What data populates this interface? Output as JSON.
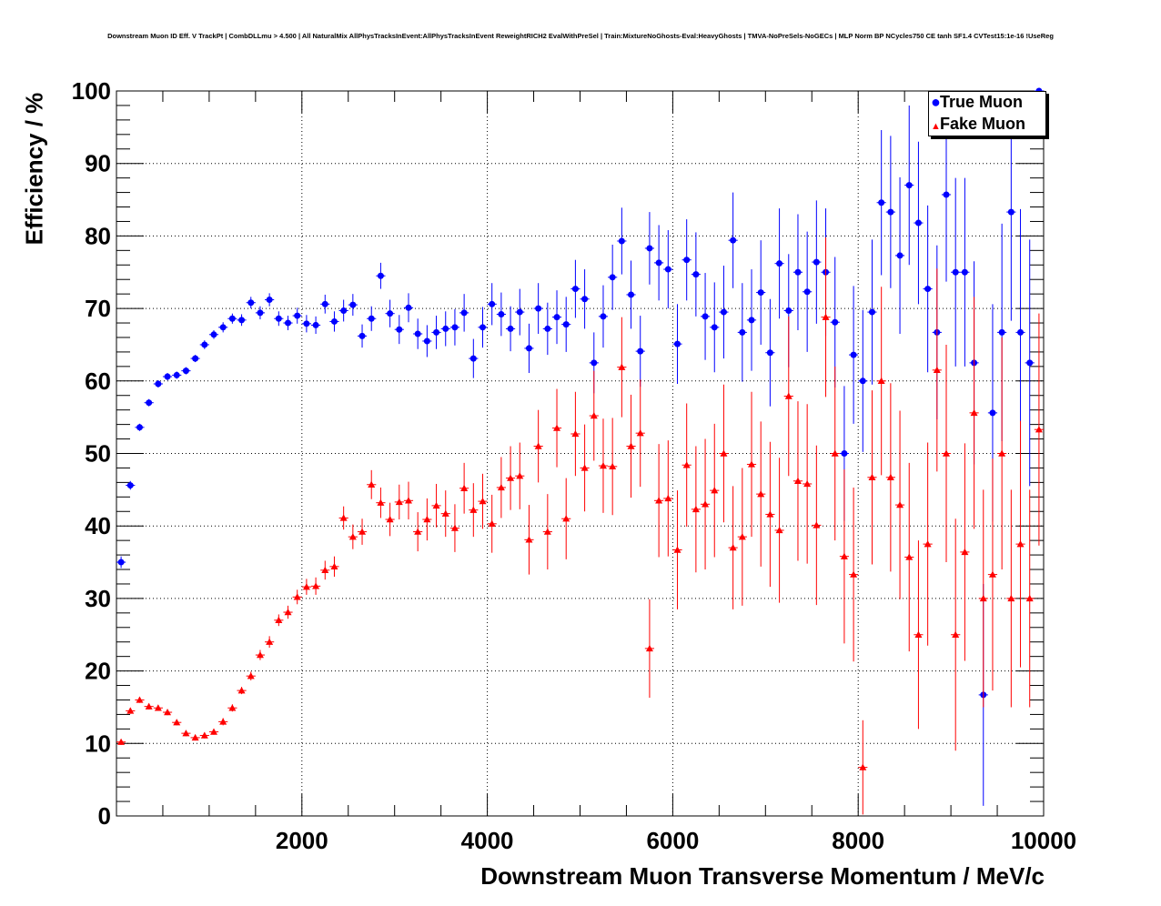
{
  "chart_data": {
    "type": "scatter",
    "title": "Downstream Muon ID Eff. V TrackPt | CombDLLmu > 4.500 | All NaturalMix AllPhysTracksInEvent:AllPhysTracksInEvent ReweightRICH2 EvalWithPreSel | Train:MixtureNoGhosts-Eval:HeavyGhosts | TMVA-NoPreSels-NoGECs | MLP Norm BP NCycles750 CE tanh SF1.4 CVTest15:1e-16 !UseReg",
    "xlabel": "Downstream Muon Transverse Momentum / MeV/c",
    "ylabel": "Efficiency / %",
    "xlim": [
      0,
      10000
    ],
    "ylim": [
      0,
      100
    ],
    "x_ticks": [
      2000,
      4000,
      6000,
      8000,
      10000
    ],
    "y_ticks": [
      0,
      10,
      20,
      30,
      40,
      50,
      60,
      70,
      80,
      90,
      100
    ],
    "grid": true,
    "legend_position": "top-right",
    "series": [
      {
        "name": "True Muon",
        "color": "#0000ff",
        "marker": "circle",
        "points": [
          [
            50,
            35.0,
            0.8
          ],
          [
            150,
            45.6,
            0.6
          ],
          [
            250,
            53.6,
            0.5
          ],
          [
            350,
            57.0,
            0.5
          ],
          [
            450,
            59.6,
            0.5
          ],
          [
            550,
            60.6,
            0.5
          ],
          [
            650,
            60.8,
            0.5
          ],
          [
            750,
            61.4,
            0.5
          ],
          [
            850,
            63.1,
            0.5
          ],
          [
            950,
            65.0,
            0.6
          ],
          [
            1050,
            66.4,
            0.6
          ],
          [
            1150,
            67.4,
            0.7
          ],
          [
            1250,
            68.6,
            0.7
          ],
          [
            1350,
            68.4,
            0.8
          ],
          [
            1450,
            70.8,
            0.8
          ],
          [
            1550,
            69.4,
            0.9
          ],
          [
            1650,
            71.2,
            0.9
          ],
          [
            1750,
            68.6,
            1.0
          ],
          [
            1850,
            68.0,
            1.0
          ],
          [
            1950,
            69.0,
            1.1
          ],
          [
            2050,
            67.9,
            1.2
          ],
          [
            2150,
            67.7,
            1.2
          ],
          [
            2250,
            70.6,
            1.3
          ],
          [
            2350,
            68.2,
            1.4
          ],
          [
            2450,
            69.7,
            1.5
          ],
          [
            2550,
            70.5,
            1.5
          ],
          [
            2650,
            66.2,
            1.6
          ],
          [
            2750,
            68.6,
            1.7
          ],
          [
            2850,
            74.5,
            1.8
          ],
          [
            2950,
            69.3,
            1.9
          ],
          [
            3050,
            67.1,
            2.0
          ],
          [
            3150,
            70.1,
            2.0
          ],
          [
            3250,
            66.5,
            2.1
          ],
          [
            3350,
            65.5,
            2.2
          ],
          [
            3450,
            66.7,
            2.3
          ],
          [
            3550,
            67.2,
            2.4
          ],
          [
            3650,
            67.4,
            2.5
          ],
          [
            3750,
            69.4,
            2.6
          ],
          [
            3850,
            63.1,
            2.7
          ],
          [
            3950,
            67.4,
            2.8
          ],
          [
            4050,
            70.6,
            2.9
          ],
          [
            4150,
            69.2,
            3.0
          ],
          [
            4250,
            67.2,
            3.1
          ],
          [
            4350,
            69.5,
            3.2
          ],
          [
            4450,
            64.5,
            3.4
          ],
          [
            4550,
            70.0,
            3.5
          ],
          [
            4650,
            67.2,
            3.6
          ],
          [
            4750,
            68.8,
            3.7
          ],
          [
            4850,
            67.8,
            3.8
          ],
          [
            4950,
            72.7,
            4.0
          ],
          [
            5050,
            71.3,
            4.1
          ],
          [
            5150,
            62.5,
            4.2
          ],
          [
            5250,
            68.9,
            4.3
          ],
          [
            5350,
            74.3,
            4.5
          ],
          [
            5450,
            79.3,
            4.6
          ],
          [
            5550,
            71.9,
            4.7
          ],
          [
            5650,
            64.1,
            4.9
          ],
          [
            5750,
            78.3,
            5.0
          ],
          [
            5850,
            76.3,
            5.2
          ],
          [
            5950,
            75.4,
            5.4
          ],
          [
            6050,
            65.1,
            5.5
          ],
          [
            6150,
            76.7,
            5.6
          ],
          [
            6250,
            74.7,
            5.8
          ],
          [
            6350,
            68.9,
            6.0
          ],
          [
            6450,
            67.4,
            6.2
          ],
          [
            6550,
            69.5,
            6.4
          ],
          [
            6650,
            79.4,
            6.6
          ],
          [
            6750,
            66.7,
            6.8
          ],
          [
            6850,
            68.4,
            7.0
          ],
          [
            6950,
            72.2,
            7.2
          ],
          [
            7050,
            63.9,
            7.4
          ],
          [
            7150,
            76.2,
            7.6
          ],
          [
            7250,
            69.7,
            7.8
          ],
          [
            7350,
            75.0,
            8.0
          ],
          [
            7450,
            72.3,
            8.3
          ],
          [
            7550,
            76.4,
            8.5
          ],
          [
            7650,
            75.0,
            8.8
          ],
          [
            7750,
            68.1,
            9.0
          ],
          [
            7850,
            50.0,
            9.3
          ],
          [
            7950,
            63.6,
            9.5
          ],
          [
            8050,
            60.0,
            9.8
          ],
          [
            8150,
            69.5,
            10.0
          ],
          [
            8250,
            84.6,
            10.0
          ],
          [
            8350,
            83.3,
            10.5
          ],
          [
            8450,
            77.3,
            10.8
          ],
          [
            8550,
            87.0,
            11.0
          ],
          [
            8650,
            81.8,
            11.2
          ],
          [
            8750,
            72.7,
            11.5
          ],
          [
            8850,
            66.7,
            12.0
          ],
          [
            8950,
            85.7,
            12.0
          ],
          [
            9050,
            75.0,
            13.0
          ],
          [
            9150,
            75.0,
            13.0
          ],
          [
            9250,
            62.5,
            14.0
          ],
          [
            9350,
            16.7,
            15.3
          ],
          [
            9450,
            55.6,
            15.0
          ],
          [
            9550,
            66.7,
            15.0
          ],
          [
            9650,
            83.3,
            15.0
          ],
          [
            9750,
            66.7,
            17.0
          ],
          [
            9850,
            62.5,
            17.0
          ],
          [
            9950,
            100.0,
            0.0
          ]
        ]
      },
      {
        "name": "Fake Muon",
        "color": "#ff0000",
        "marker": "triangle",
        "points": [
          [
            50,
            10.2,
            0.4
          ],
          [
            150,
            14.5,
            0.4
          ],
          [
            250,
            16.0,
            0.4
          ],
          [
            350,
            15.1,
            0.4
          ],
          [
            450,
            14.9,
            0.4
          ],
          [
            550,
            14.3,
            0.4
          ],
          [
            650,
            12.9,
            0.4
          ],
          [
            750,
            11.4,
            0.4
          ],
          [
            850,
            10.8,
            0.4
          ],
          [
            950,
            11.1,
            0.4
          ],
          [
            1050,
            11.6,
            0.4
          ],
          [
            1150,
            13.0,
            0.5
          ],
          [
            1250,
            14.9,
            0.5
          ],
          [
            1350,
            17.3,
            0.5
          ],
          [
            1450,
            19.3,
            0.6
          ],
          [
            1550,
            22.2,
            0.7
          ],
          [
            1650,
            24.0,
            0.8
          ],
          [
            1750,
            27.0,
            0.8
          ],
          [
            1850,
            28.1,
            0.9
          ],
          [
            1950,
            30.2,
            1.0
          ],
          [
            2050,
            31.6,
            1.1
          ],
          [
            2150,
            31.7,
            1.2
          ],
          [
            2250,
            33.9,
            1.3
          ],
          [
            2350,
            34.4,
            1.4
          ],
          [
            2450,
            41.1,
            1.6
          ],
          [
            2550,
            38.5,
            1.7
          ],
          [
            2650,
            39.2,
            1.8
          ],
          [
            2750,
            45.7,
            2.0
          ],
          [
            2850,
            43.2,
            2.1
          ],
          [
            2950,
            40.9,
            2.3
          ],
          [
            3050,
            43.3,
            2.4
          ],
          [
            3150,
            43.5,
            2.6
          ],
          [
            3250,
            39.2,
            2.7
          ],
          [
            3350,
            40.9,
            2.9
          ],
          [
            3450,
            42.8,
            3.0
          ],
          [
            3550,
            41.7,
            3.2
          ],
          [
            3650,
            39.7,
            3.3
          ],
          [
            3750,
            45.2,
            3.5
          ],
          [
            3850,
            42.2,
            3.7
          ],
          [
            3950,
            43.4,
            3.8
          ],
          [
            4050,
            40.3,
            4.0
          ],
          [
            4150,
            45.3,
            4.2
          ],
          [
            4250,
            46.6,
            4.4
          ],
          [
            4350,
            46.9,
            4.6
          ],
          [
            4450,
            38.1,
            4.8
          ],
          [
            4550,
            51.0,
            5.0
          ],
          [
            4650,
            39.2,
            5.2
          ],
          [
            4750,
            53.5,
            5.4
          ],
          [
            4850,
            41.0,
            5.6
          ],
          [
            4950,
            52.7,
            5.8
          ],
          [
            5050,
            48.0,
            6.0
          ],
          [
            5150,
            55.2,
            6.2
          ],
          [
            5250,
            48.3,
            6.5
          ],
          [
            5350,
            48.2,
            6.7
          ],
          [
            5450,
            61.9,
            6.9
          ],
          [
            5550,
            51.0,
            7.1
          ],
          [
            5650,
            52.8,
            7.4
          ],
          [
            5750,
            23.1,
            6.8
          ],
          [
            5850,
            43.5,
            7.8
          ],
          [
            5950,
            43.8,
            8.0
          ],
          [
            6050,
            36.7,
            8.2
          ],
          [
            6150,
            48.4,
            8.5
          ],
          [
            6250,
            42.3,
            8.7
          ],
          [
            6350,
            43.0,
            9.0
          ],
          [
            6450,
            44.9,
            9.2
          ],
          [
            6550,
            50.0,
            9.5
          ],
          [
            6650,
            37.0,
            8.5
          ],
          [
            6750,
            38.5,
            9.5
          ],
          [
            6850,
            48.5,
            10.0
          ],
          [
            6950,
            44.4,
            10.0
          ],
          [
            7050,
            41.6,
            10.0
          ],
          [
            7150,
            39.4,
            10.0
          ],
          [
            7250,
            57.9,
            11.0
          ],
          [
            7350,
            46.2,
            11.0
          ],
          [
            7450,
            45.8,
            11.0
          ],
          [
            7550,
            40.1,
            11.0
          ],
          [
            7650,
            68.8,
            11.0
          ],
          [
            7750,
            50.0,
            12.0
          ],
          [
            7850,
            35.8,
            12.0
          ],
          [
            7950,
            33.3,
            12.0
          ],
          [
            8050,
            6.7,
            6.5
          ],
          [
            8150,
            46.7,
            12.0
          ],
          [
            8250,
            60.0,
            13.0
          ],
          [
            8350,
            46.7,
            13.0
          ],
          [
            8450,
            42.9,
            13.0
          ],
          [
            8550,
            35.7,
            13.0
          ],
          [
            8650,
            25.0,
            13.0
          ],
          [
            8750,
            37.5,
            14.0
          ],
          [
            8850,
            61.5,
            14.0
          ],
          [
            8950,
            50.0,
            15.0
          ],
          [
            9050,
            25.0,
            16.0
          ],
          [
            9150,
            36.4,
            15.0
          ],
          [
            9250,
            55.6,
            16.0
          ],
          [
            9350,
            30.0,
            15.0
          ],
          [
            9450,
            33.3,
            16.0
          ],
          [
            9550,
            50.0,
            16.0
          ],
          [
            9650,
            30.0,
            15.0
          ],
          [
            9750,
            37.5,
            17.0
          ],
          [
            9850,
            30.0,
            15.0
          ],
          [
            9950,
            53.3,
            16.0
          ]
        ]
      }
    ]
  }
}
